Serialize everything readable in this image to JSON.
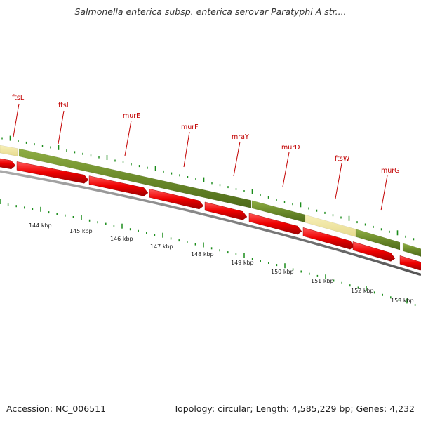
{
  "header": {
    "title": "Salmonella enterica subsp. enterica serovar Paratyphi A str...."
  },
  "footer": {
    "accession": "Accession: NC_006511",
    "topology": "Topology: circular; Length: 4,585,229 bp; Genes: 4,232"
  },
  "colors": {
    "gene_label": "#c20000",
    "gene_arrow": "#e8000b",
    "backbone": "#6b8a2a",
    "highlight": "#f0e6a0",
    "tick": "#1a8c1a",
    "axis": "#777777"
  },
  "genes": [
    {
      "name": "ftsL"
    },
    {
      "name": "ftsI"
    },
    {
      "name": "murE"
    },
    {
      "name": "murF"
    },
    {
      "name": "mraY"
    },
    {
      "name": "murD"
    },
    {
      "name": "ftsW"
    },
    {
      "name": "murG"
    }
  ],
  "scale_labels": [
    "144 kbp",
    "145 kbp",
    "146 kbp",
    "147 kbp",
    "148 kbp",
    "149 kbp",
    "150 kbp",
    "151 kbp",
    "152 kbp",
    "153 kbp"
  ]
}
